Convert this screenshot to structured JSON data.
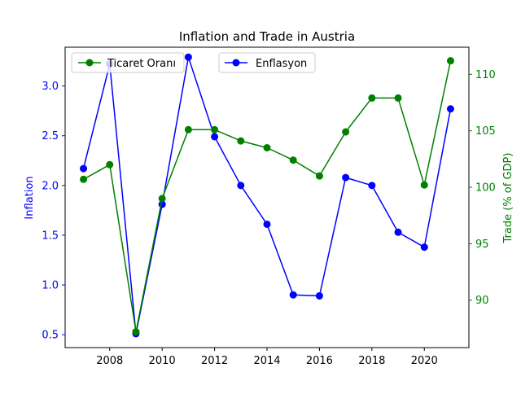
{
  "chart_data": {
    "type": "line",
    "title": "Inflation and Trade in Austria",
    "x": [
      2007,
      2008,
      2009,
      2010,
      2011,
      2012,
      2013,
      2014,
      2015,
      2016,
      2017,
      2018,
      2019,
      2020,
      2021
    ],
    "x_ticks": [
      2008,
      2010,
      2012,
      2014,
      2016,
      2018,
      2020
    ],
    "x_range": [
      2006.3,
      2021.7
    ],
    "left_axis": {
      "label": "Inflation",
      "range": [
        0.37,
        3.39
      ],
      "ticks": [
        0.5,
        1.0,
        1.5,
        2.0,
        2.5,
        3.0
      ],
      "color": "#0000ff"
    },
    "right_axis": {
      "label": "Trade (% of GDP)",
      "range": [
        85.8,
        112.4
      ],
      "ticks": [
        90,
        95,
        100,
        105,
        110
      ],
      "color": "#008000"
    },
    "series": [
      {
        "name": "Enflasyon",
        "axis": "left",
        "color": "#0000ff",
        "values": [
          2.17,
          3.22,
          0.51,
          1.81,
          3.29,
          2.49,
          2.0,
          1.61,
          0.9,
          0.89,
          2.08,
          2.0,
          1.53,
          1.38,
          2.77
        ]
      },
      {
        "name": "Ticaret Oranı",
        "axis": "right",
        "color": "#008000",
        "values": [
          100.7,
          102.0,
          87.2,
          99.0,
          105.1,
          105.1,
          104.1,
          103.5,
          102.4,
          101.0,
          104.9,
          107.9,
          107.9,
          100.2,
          111.2
        ]
      }
    ],
    "grid": false,
    "legend": [
      "top-left",
      "top-center"
    ]
  }
}
